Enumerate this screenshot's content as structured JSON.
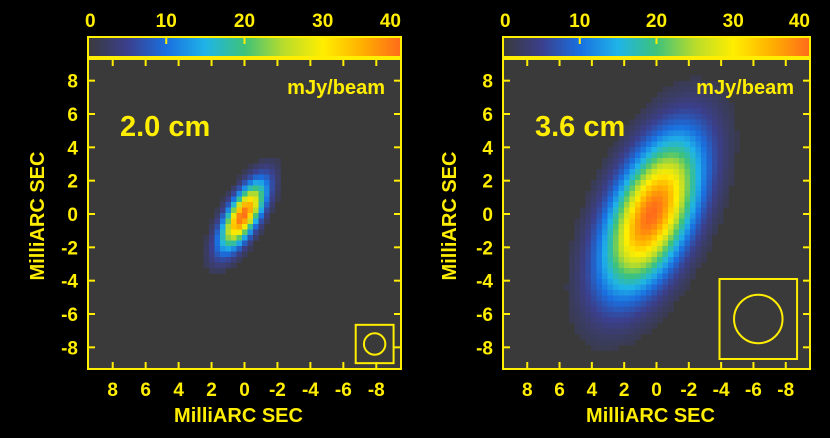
{
  "colors": {
    "background": "#000000",
    "axis": "#ffee00",
    "plot_bg": "#3a3a3a",
    "label": "#ffee00",
    "colormap": [
      "#3a3a3a",
      "#3b3f8c",
      "#1a6fe0",
      "#1fb4e8",
      "#3ec27a",
      "#b8dc2c",
      "#ffee00",
      "#ffb000",
      "#ff6a1a"
    ]
  },
  "chart_data": [
    {
      "type": "heatmap",
      "panel": "left",
      "label": "2.0 cm",
      "units": "mJy/beam",
      "xlabel": "MilliARC SEC",
      "ylabel": "MilliARC SEC",
      "xlim": [
        9.5,
        -9.5
      ],
      "ylim": [
        -9.3,
        9.3
      ],
      "x_ticks": [
        8,
        6,
        4,
        2,
        0,
        -2,
        -4,
        -6,
        -8
      ],
      "x_tick_labels": [
        "8",
        "6",
        "4",
        "2",
        "0",
        "-2",
        "-4",
        "-6",
        "-8"
      ],
      "y_ticks": [
        8,
        6,
        4,
        2,
        0,
        -2,
        -4,
        -6,
        -8
      ],
      "y_tick_labels": [
        "8",
        "6",
        "4",
        "2",
        "0",
        "-2",
        "-4",
        "-6",
        "-8"
      ],
      "colorbar": {
        "range": [
          0,
          40
        ],
        "ticks": [
          0,
          10,
          20,
          30,
          40
        ],
        "tick_labels": [
          "0",
          "10",
          "20",
          "30",
          "40"
        ]
      },
      "source": {
        "peak": 40,
        "center": [
          0.1,
          -0.1
        ],
        "sigma_major": 1.55,
        "sigma_minor": 0.6,
        "pa_deg": 30
      },
      "beam": {
        "center": [
          -7.9,
          -7.8
        ],
        "radius": 0.65,
        "box_half": 1.15
      }
    },
    {
      "type": "heatmap",
      "panel": "right",
      "label": "3.6 cm",
      "units": "mJy/beam",
      "xlabel": "MilliARC SEC",
      "ylabel": "MilliARC SEC",
      "xlim": [
        9.5,
        -9.5
      ],
      "ylim": [
        -9.3,
        9.3
      ],
      "x_ticks": [
        8,
        6,
        4,
        2,
        0,
        -2,
        -4,
        -6,
        -8
      ],
      "x_tick_labels": [
        "8",
        "6",
        "4",
        "2",
        "0",
        "-2",
        "-4",
        "-6",
        "-8"
      ],
      "y_ticks": [
        8,
        6,
        4,
        2,
        0,
        -2,
        -4,
        -6,
        -8
      ],
      "y_tick_labels": [
        "8",
        "6",
        "4",
        "2",
        "0",
        "-2",
        "-4",
        "-6",
        "-8"
      ],
      "colorbar": {
        "range": [
          0,
          40
        ],
        "ticks": [
          0,
          10,
          20,
          30,
          40
        ],
        "tick_labels": [
          "0",
          "10",
          "20",
          "30",
          "40"
        ]
      },
      "source": {
        "peak": 40,
        "center": [
          0.3,
          0.0
        ],
        "sigma_major": 3.4,
        "sigma_minor": 1.6,
        "pa_deg": 25
      },
      "beam": {
        "center": [
          -6.3,
          -6.3
        ],
        "radius": 1.5,
        "box_half": 2.4
      }
    }
  ]
}
